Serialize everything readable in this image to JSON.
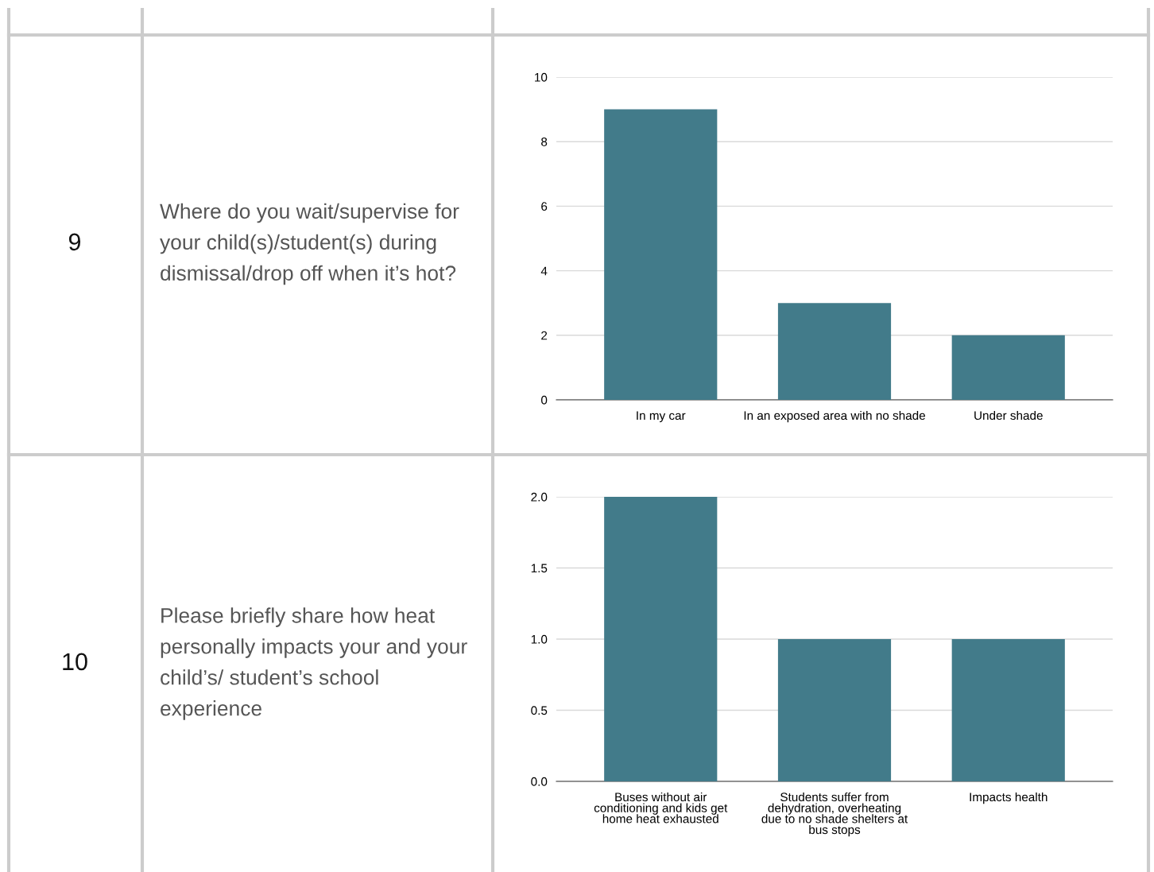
{
  "chart_data": [
    {
      "type": "bar",
      "title": "Where do you wait/supervise for\nyour child(s)/student(s) during\ndismissal/drop off when it’s hot?",
      "annotations": [
        "9"
      ],
      "categories": [
        "In my car",
        "In an exposed area with no shade",
        "Under shade"
      ],
      "values": [
        9,
        3,
        2
      ],
      "color": "#427b8a",
      "ylim": [
        0,
        10
      ],
      "yticks": [
        0,
        2,
        4,
        6,
        8,
        10
      ],
      "grid": "y"
    },
    {
      "type": "bar",
      "title": "Please briefly share how heat\npersonally impacts your and your\nchild’s/ student’s school\nexperience",
      "annotations": [
        "10"
      ],
      "categories": [
        "Buses without air\nconditioning and kids get\nhome heat exhausted",
        "Students suffer from\ndehydration, overheating\ndue to no shade shelters at\nbus stops",
        "Impacts health"
      ],
      "values": [
        2,
        1,
        1
      ],
      "color": "#427b8a",
      "ylim": [
        0,
        2.0
      ],
      "yticks": [
        {
          "value": 0,
          "label": "0.0"
        },
        {
          "value": 0.5,
          "label": "0.5"
        },
        {
          "value": 1,
          "label": "1.0"
        },
        {
          "value": 1.5,
          "label": "1.5"
        },
        {
          "value": 2,
          "label": "2.0"
        }
      ],
      "grid": "y"
    }
  ]
}
